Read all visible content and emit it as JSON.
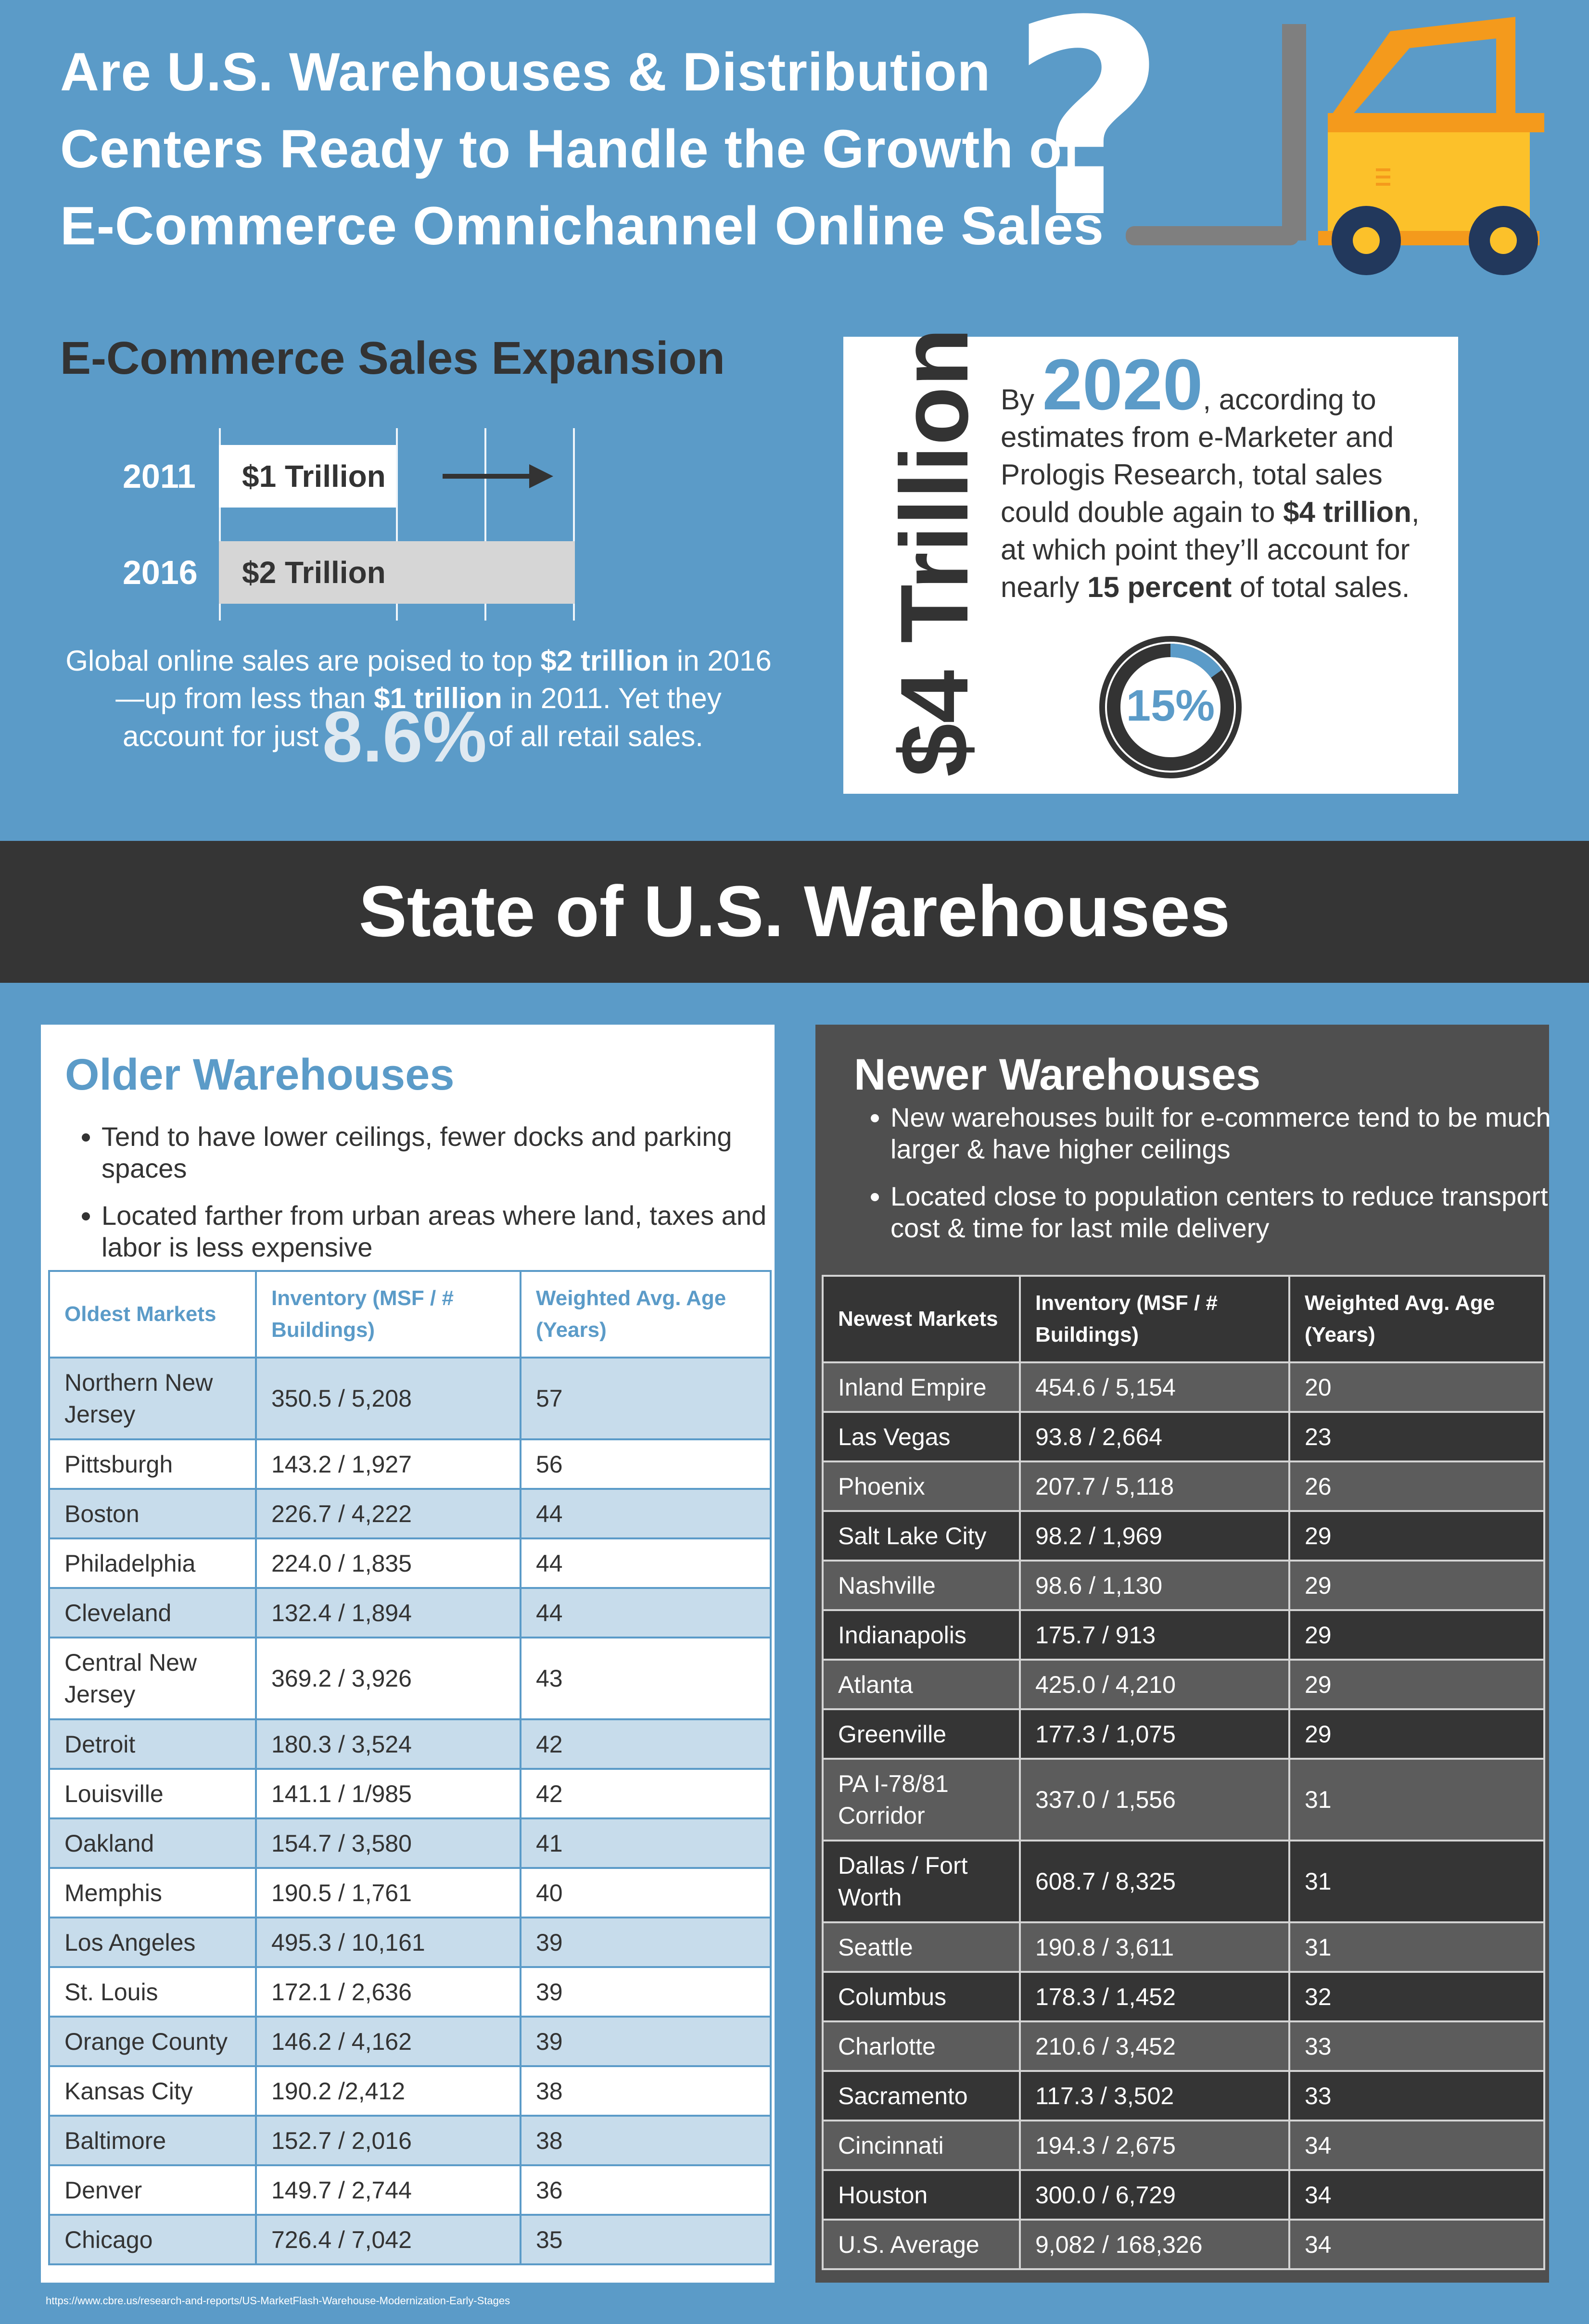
{
  "header": {
    "title_lines": [
      "Are U.S. Warehouses & Distribution",
      "Centers Ready to Handle the Growth of",
      "E-Commerce Omnichannel Online Sales"
    ],
    "question_mark": "?",
    "forklift_icon": "forklift-icon"
  },
  "ecommerce": {
    "heading": "E-Commerce Sales Expansion",
    "bars": [
      {
        "year": "2011",
        "label": "$1 Trillion",
        "value": 1
      },
      {
        "year": "2016",
        "label": "$2 Trillion",
        "value": 2
      }
    ],
    "arrow_icon": "arrow-right-icon",
    "text_parts": {
      "p1": "Global online sales are poised to top ",
      "b1": "$2 trillion",
      "p2": " in 2016",
      "p3": "—up from less than ",
      "b2": "$1 trillion",
      "p4": " in 2011. Yet they",
      "p5": "account for just",
      "pct": "8.6%",
      "p6": "of all retail sales."
    }
  },
  "forecast": {
    "big_value": "$4 Trillion",
    "by": "By",
    "year": "2020",
    "t1": ", according to",
    "t2": "estimates from e-Marketer and",
    "t3": "Prologis Research, total sales",
    "t4": "could double again to ",
    "t4b": "$4 trillion",
    "t4c": ",",
    "t5": "at which point they’ll account for",
    "t6": "nearly ",
    "t6b": "15 percent",
    "t6c": " of total sales.",
    "pct_label": "15%",
    "pct_value": 15
  },
  "state": {
    "title": "State of U.S. Warehouses"
  },
  "older": {
    "heading": "Older Warehouses",
    "bullets": [
      "Tend to have lower ceilings, fewer docks and parking spaces",
      "Located farther from urban areas where land, taxes and labor is less expensive"
    ],
    "columns": [
      "Oldest Markets",
      "Inventory (MSF / # Buildings)",
      "Weighted Avg. Age (Years)"
    ],
    "rows": [
      [
        "Northern New Jersey",
        "350.5 / 5,208",
        "57"
      ],
      [
        "Pittsburgh",
        "143.2 / 1,927",
        "56"
      ],
      [
        "Boston",
        "226.7 / 4,222",
        "44"
      ],
      [
        "Philadelphia",
        "224.0 / 1,835",
        "44"
      ],
      [
        "Cleveland",
        "132.4 / 1,894",
        "44"
      ],
      [
        "Central New Jersey",
        "369.2 / 3,926",
        "43"
      ],
      [
        "Detroit",
        "180.3 / 3,524",
        "42"
      ],
      [
        "Louisville",
        "141.1 / 1/985",
        "42"
      ],
      [
        "Oakland",
        "154.7 / 3,580",
        "41"
      ],
      [
        "Memphis",
        "190.5 / 1,761",
        "40"
      ],
      [
        "Los Angeles",
        "495.3 / 10,161",
        "39"
      ],
      [
        "St. Louis",
        "172.1 / 2,636",
        "39"
      ],
      [
        "Orange County",
        "146.2 / 4,162",
        "39"
      ],
      [
        "Kansas City",
        "190.2 /2,412",
        "38"
      ],
      [
        "Baltimore",
        "152.7 / 2,016",
        "38"
      ],
      [
        "Denver",
        "149.7 / 2,744",
        "36"
      ],
      [
        "Chicago",
        "726.4 / 7,042",
        "35"
      ]
    ]
  },
  "newer": {
    "heading": "Newer Warehouses",
    "bullets": [
      "New warehouses built for e-commerce tend to be much larger & have higher ceilings",
      "Located close to population centers to reduce transport cost & time for last mile delivery"
    ],
    "columns": [
      "Newest Markets",
      "Inventory (MSF / # Buildings)",
      "Weighted Avg. Age (Years)"
    ],
    "rows": [
      [
        "Inland Empire",
        "454.6 / 5,154",
        "20"
      ],
      [
        "Las Vegas",
        "93.8 / 2,664",
        "23"
      ],
      [
        "Phoenix",
        "207.7 / 5,118",
        "26"
      ],
      [
        "Salt Lake City",
        "98.2 / 1,969",
        "29"
      ],
      [
        "Nashville",
        "98.6 / 1,130",
        "29"
      ],
      [
        "Indianapolis",
        "175.7 / 913",
        "29"
      ],
      [
        "Atlanta",
        "425.0 / 4,210",
        "29"
      ],
      [
        "Greenville",
        "177.3 / 1,075",
        "29"
      ],
      [
        "PA I-78/81 Corridor",
        "337.0 / 1,556",
        "31"
      ],
      [
        "Dallas / Fort Worth",
        "608.7 / 8,325",
        "31"
      ],
      [
        "Seattle",
        "190.8 / 3,611",
        "31"
      ],
      [
        "Columbus",
        "178.3 / 1,452",
        "32"
      ],
      [
        "Charlotte",
        "210.6 / 3,452",
        "33"
      ],
      [
        "Sacramento",
        "117.3 / 3,502",
        "33"
      ],
      [
        "Cincinnati",
        "194.3 / 2,675",
        "34"
      ],
      [
        "Houston",
        "300.0 / 6,729",
        "34"
      ],
      [
        "U.S. Average",
        "9,082 / 168,326",
        "34"
      ]
    ]
  },
  "source": "https://www.cbre.us/research-and-reports/US-MarketFlash-Warehouse-Modernization-Early-Stages",
  "colors": {
    "background": "#5b9bc8",
    "dark": "#353535",
    "accent_blue": "#5b9bc8",
    "forklift_yellow": "#fcc12a",
    "forklift_orange": "#f49a1c",
    "wheel_navy": "#22385c"
  }
}
